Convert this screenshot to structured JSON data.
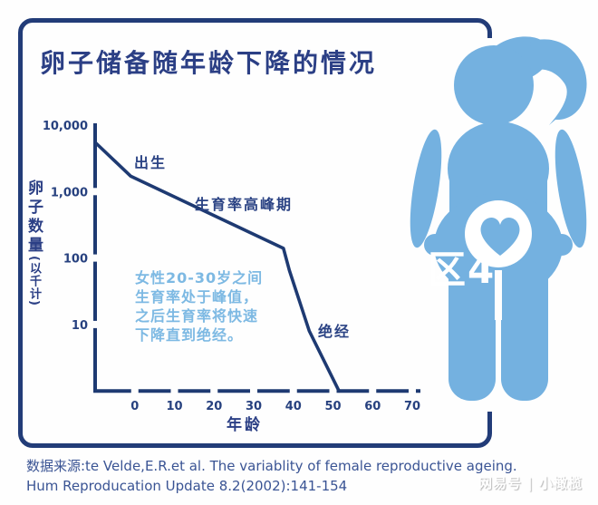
{
  "title": "卵子储备随年龄下降的情况",
  "colors": {
    "navy_border": "#223c78",
    "navy_text": "#2b3f85",
    "curve_navy": "#1e3a72",
    "figure_blue": "#74b1e0",
    "note_blue": "#7db9e3",
    "source_navy": "#3a5494"
  },
  "chart_data": {
    "type": "line",
    "title": "卵子储备随年龄下降的情况",
    "xlabel": "年龄",
    "ylabel": "卵子数量(以千计)",
    "ylabel_main": "卵子数量",
    "ylabel_sub": "(以千计)",
    "y_scale": "log",
    "xlim": [
      -10,
      70
    ],
    "ylim": [
      1,
      10000
    ],
    "x_ticks": [
      0,
      10,
      20,
      30,
      40,
      50,
      60,
      70
    ],
    "y_ticks": [
      10,
      100,
      1000,
      10000
    ],
    "y_tick_labels": [
      "10",
      "100",
      "1,000",
      "10,000"
    ],
    "grid": false,
    "legend": false,
    "series": [
      {
        "name": "卵子数量(以千计)",
        "points": [
          [
            -10,
            5500
          ],
          [
            -1,
            1700
          ],
          [
            37.5,
            140
          ],
          [
            39,
            65
          ],
          [
            44,
            8
          ],
          [
            51.5,
            1
          ]
        ]
      }
    ],
    "annotations": {
      "birth": "出生",
      "peak_fertility": "生育率高峰期",
      "menopause": "绝经",
      "note": [
        "女性20-30岁之间",
        "生育率处于峰值，",
        "之后生育率将快速",
        "下降直到绝经。"
      ]
    }
  },
  "source": {
    "line1": "数据来源:te Velde,E.R.et al. The variablity of female reproductive ageing.",
    "line2": "Hum Reproducation Update 8.2(2002):141-154"
  },
  "watermarks": {
    "center_partial": "区4",
    "bottom_right": "网易号 | 小橄榄"
  },
  "figure": {
    "description": "pregnant woman silhouette with heart in belly",
    "color": "#74b1e0"
  }
}
